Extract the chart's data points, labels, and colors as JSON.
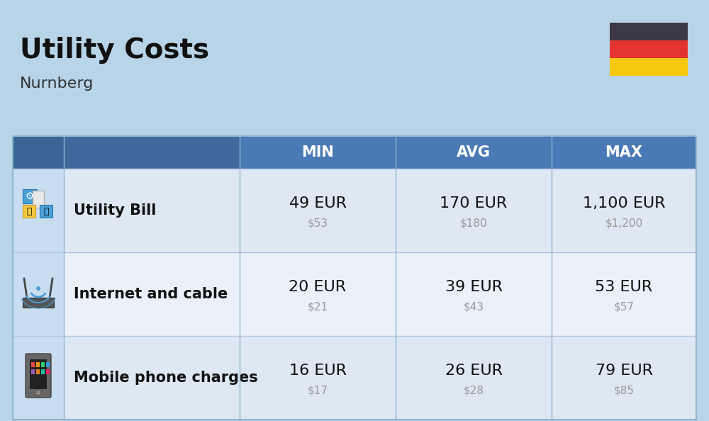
{
  "title": "Utility Costs",
  "subtitle": "Nurnberg",
  "background_color": "#b8d4e8",
  "table_header_color": "#4a7ab5",
  "table_header_text_color": "#ffffff",
  "row_color_odd": "#dde8f3",
  "row_color_even": "#eaf1f8",
  "col_headers": [
    "MIN",
    "AVG",
    "MAX"
  ],
  "rows": [
    {
      "label": "Utility Bill",
      "min_eur": "49 EUR",
      "min_usd": "$53",
      "avg_eur": "170 EUR",
      "avg_usd": "$180",
      "max_eur": "1,100 EUR",
      "max_usd": "$1,200"
    },
    {
      "label": "Internet and cable",
      "min_eur": "20 EUR",
      "min_usd": "$21",
      "avg_eur": "39 EUR",
      "avg_usd": "$43",
      "max_eur": "53 EUR",
      "max_usd": "$57"
    },
    {
      "label": "Mobile phone charges",
      "min_eur": "16 EUR",
      "min_usd": "$17",
      "avg_eur": "26 EUR",
      "avg_usd": "$28",
      "max_eur": "79 EUR",
      "max_usd": "$85"
    }
  ],
  "flag_colors": [
    "#3d3846",
    "#e3342f",
    "#f6c90e"
  ],
  "eur_fontsize": 16,
  "usd_fontsize": 11,
  "usd_color": "#999999",
  "label_fontsize": 15,
  "header_fontsize": 15,
  "title_fontsize": 28,
  "subtitle_fontsize": 16
}
